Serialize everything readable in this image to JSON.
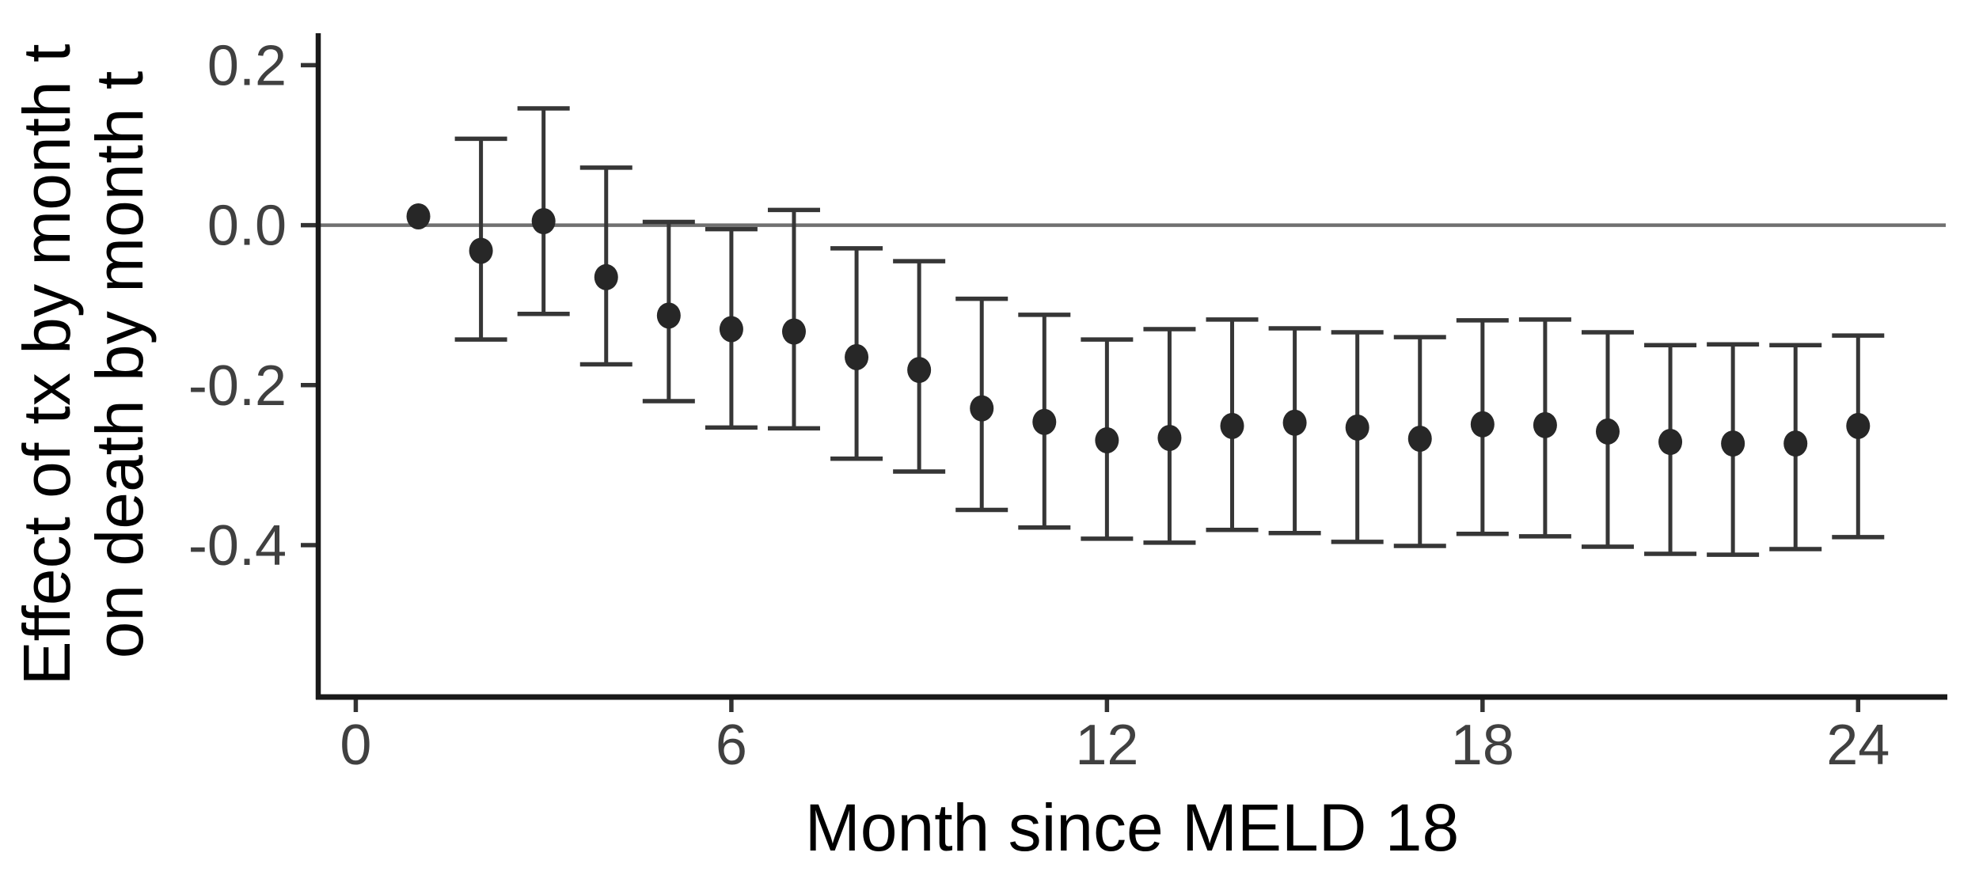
{
  "figure": {
    "x_axis_title": "Month since MELD 18",
    "y_axis_title_line1": "Effect of tx by month t",
    "y_axis_title_line2": "on death by month t"
  },
  "colors": {
    "point": "#272727",
    "error_bar": "#363636",
    "axis_line": "#191919",
    "tick_mark": "#333333",
    "tick_label": "#404040",
    "zero_line": "#707070",
    "background": "#ffffff"
  },
  "chart_data": {
    "type": "scatter",
    "subtype": "point-estimates-with-error-bars",
    "title": "",
    "xlabel": "Month since MELD 18",
    "ylabel": "Effect of tx by month t on death by month t",
    "x": [
      1,
      2,
      3,
      4,
      5,
      6,
      7,
      8,
      9,
      10,
      11,
      12,
      13,
      14,
      15,
      16,
      17,
      18,
      19,
      20,
      21,
      22,
      23,
      24
    ],
    "y": [
      0.011,
      -0.032,
      0.005,
      -0.065,
      -0.113,
      -0.13,
      -0.133,
      -0.165,
      -0.181,
      -0.229,
      -0.246,
      -0.269,
      -0.266,
      -0.251,
      -0.247,
      -0.253,
      -0.267,
      -0.249,
      -0.25,
      -0.258,
      -0.271,
      -0.273,
      -0.273,
      -0.251
    ],
    "ci_low": [
      0.011,
      -0.143,
      -0.111,
      -0.174,
      -0.22,
      -0.253,
      -0.254,
      -0.292,
      -0.308,
      -0.356,
      -0.378,
      -0.392,
      -0.397,
      -0.381,
      -0.385,
      -0.396,
      -0.401,
      -0.386,
      -0.389,
      -0.402,
      -0.411,
      -0.412,
      -0.405,
      -0.39
    ],
    "ci_high": [
      0.011,
      0.108,
      0.146,
      0.072,
      0.004,
      -0.005,
      0.019,
      -0.029,
      -0.045,
      -0.092,
      -0.112,
      -0.143,
      -0.13,
      -0.118,
      -0.129,
      -0.134,
      -0.14,
      -0.119,
      -0.118,
      -0.134,
      -0.15,
      -0.149,
      -0.15,
      -0.138
    ],
    "x_ticks": [
      0,
      6,
      12,
      18,
      24
    ],
    "x_tick_labels": [
      "0",
      "6",
      "12",
      "18",
      "24"
    ],
    "y_ticks": [
      0.2,
      0.0,
      -0.2,
      -0.4
    ],
    "y_tick_labels": [
      "0.2",
      "0.0",
      "-0.2",
      "-0.4"
    ],
    "xlim": [
      -0.6,
      25.4
    ],
    "ylim": [
      -0.59,
      0.24
    ],
    "reference_line_y": 0,
    "grid": false,
    "legend": "none"
  }
}
